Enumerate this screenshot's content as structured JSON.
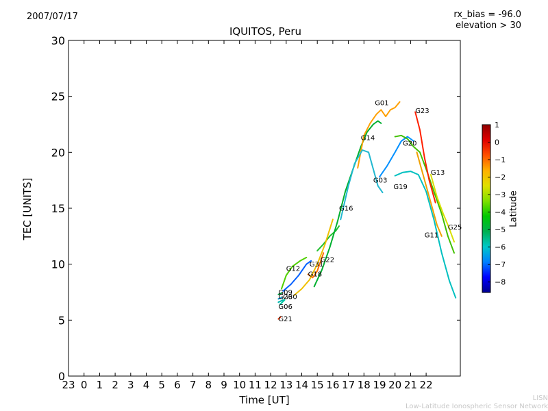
{
  "header": {
    "date": "2007/07/17",
    "rx_bias": "rx_bias = -96.0",
    "elevation": "elevation > 30"
  },
  "footer": {
    "credit_line1": "LISN",
    "credit_line2": "Low-Latitude Ionospheric Sensor Network"
  },
  "chart_data": {
    "type": "line",
    "title": "IQUITOS, Peru",
    "xlabel": "Time [UT]",
    "ylabel": "TEC [UNITS]",
    "ylim": [
      0,
      30
    ],
    "yticks": [
      0,
      5,
      10,
      15,
      20,
      25,
      30
    ],
    "xtick_labels": [
      "23",
      "0",
      "1",
      "2",
      "3",
      "4",
      "5",
      "6",
      "7",
      "8",
      "9",
      "10",
      "11",
      "12",
      "13",
      "14",
      "15",
      "16",
      "17",
      "18",
      "19",
      "20",
      "21",
      "22"
    ],
    "colorbar": {
      "label": "Latitude",
      "ticks": [
        1,
        0,
        -1,
        -2,
        -3,
        -4,
        -5,
        -6,
        -7,
        -8
      ],
      "range": [
        -8.6,
        1.0
      ],
      "colors": [
        "#00008f",
        "#0000ff",
        "#0080ff",
        "#00c8c8",
        "#00b050",
        "#00c800",
        "#80e000",
        "#e0e000",
        "#ffb000",
        "#ff5000",
        "#e00000",
        "#8f0000"
      ]
    },
    "series": [
      {
        "name": "G21",
        "color": "#ee3300",
        "points": [
          [
            12.5,
            5.1
          ],
          [
            12.65,
            5.3
          ]
        ]
      },
      {
        "name": "G06",
        "color": "#00b8b0",
        "points": [
          [
            12.5,
            6.6
          ],
          [
            12.8,
            6.8
          ]
        ]
      },
      {
        "name": "G09",
        "color": "#00a040",
        "points": [
          [
            12.5,
            7.3
          ],
          [
            12.7,
            7.4
          ]
        ]
      },
      {
        "name": "G26",
        "color": "#0090d0",
        "points": [
          [
            12.5,
            6.9
          ],
          [
            12.7,
            7.0
          ]
        ]
      },
      {
        "name": "G30",
        "color": "#00c8a0",
        "points": [
          [
            12.6,
            6.4
          ],
          [
            12.9,
            6.8
          ]
        ]
      },
      {
        "name": "G12",
        "color": "#50d000",
        "points": [
          [
            12.7,
            7.8
          ],
          [
            13.0,
            9.0
          ],
          [
            13.4,
            9.8
          ],
          [
            13.9,
            10.3
          ],
          [
            14.3,
            10.6
          ]
        ]
      },
      {
        "name": "G31",
        "color": "#0060ff",
        "points": [
          [
            12.8,
            7.6
          ],
          [
            13.3,
            8.2
          ],
          [
            13.8,
            9.0
          ],
          [
            14.3,
            10.0
          ],
          [
            14.6,
            10.3
          ]
        ]
      },
      {
        "name": "G18",
        "color": "#ff7000",
        "points": [
          [
            14.4,
            9.1
          ],
          [
            14.7,
            8.8
          ],
          [
            15.0,
            9.4
          ],
          [
            15.4,
            11.0
          ]
        ]
      },
      {
        "name": "G22",
        "color": "#20c030",
        "points": [
          [
            15.0,
            11.2
          ],
          [
            15.4,
            11.8
          ],
          [
            15.8,
            12.5
          ],
          [
            16.2,
            13.0
          ],
          [
            16.4,
            13.4
          ]
        ]
      },
      {
        "name": "G16",
        "color": "#f0c000",
        "points": [
          [
            13.5,
            7.2
          ],
          [
            14.0,
            7.8
          ],
          [
            14.5,
            8.6
          ],
          [
            15.0,
            10.0
          ],
          [
            15.5,
            11.8
          ],
          [
            16.0,
            14.0
          ]
        ]
      },
      {
        "name": "G14",
        "color": "#00b030",
        "points": [
          [
            14.8,
            8.0
          ],
          [
            15.3,
            9.5
          ],
          [
            15.8,
            11.5
          ],
          [
            16.3,
            13.8
          ],
          [
            16.8,
            16.5
          ],
          [
            17.3,
            18.5
          ],
          [
            17.8,
            20.5
          ],
          [
            18.2,
            21.8
          ],
          [
            18.6,
            22.5
          ],
          [
            18.9,
            22.8
          ],
          [
            19.1,
            22.6
          ]
        ]
      },
      {
        "name": "G01",
        "color": "#ffa000",
        "points": [
          [
            17.6,
            18.6
          ],
          [
            18.0,
            21.5
          ],
          [
            18.4,
            22.6
          ],
          [
            18.8,
            23.4
          ],
          [
            19.1,
            23.8
          ],
          [
            19.4,
            23.2
          ],
          [
            19.7,
            23.8
          ],
          [
            20.0,
            24.0
          ],
          [
            20.3,
            24.5
          ]
        ]
      },
      {
        "name": "G03",
        "color": "#20b8d0",
        "points": [
          [
            16.5,
            14.0
          ],
          [
            17.0,
            17.0
          ],
          [
            17.4,
            19.0
          ],
          [
            17.9,
            20.2
          ],
          [
            18.3,
            20.0
          ],
          [
            18.6,
            18.5
          ],
          [
            18.9,
            17.0
          ],
          [
            19.2,
            16.4
          ]
        ]
      },
      {
        "name": "G19",
        "color": "#0090ff",
        "points": [
          [
            19.0,
            17.8
          ],
          [
            19.5,
            18.8
          ],
          [
            20.0,
            20.0
          ],
          [
            20.4,
            21.0
          ],
          [
            20.8,
            21.4
          ],
          [
            21.2,
            21.0
          ]
        ]
      },
      {
        "name": "G20",
        "color": "#40c000",
        "points": [
          [
            20.0,
            21.4
          ],
          [
            20.4,
            21.5
          ],
          [
            20.8,
            21.2
          ],
          [
            21.2,
            20.5
          ],
          [
            21.6,
            20.0
          ],
          [
            22.0,
            18.5
          ],
          [
            22.5,
            16.5
          ],
          [
            23.0,
            14.5
          ],
          [
            23.4,
            12.5
          ],
          [
            23.8,
            11.0
          ]
        ]
      },
      {
        "name": "G13",
        "color": "#f0a000",
        "points": [
          [
            21.4,
            20.0
          ],
          [
            21.8,
            18.0
          ],
          [
            22.1,
            16.5
          ],
          [
            22.4,
            15.0
          ],
          [
            22.7,
            13.5
          ],
          [
            23.0,
            12.5
          ]
        ]
      },
      {
        "name": "G23",
        "color": "#ff2000",
        "points": [
          [
            21.3,
            23.6
          ],
          [
            21.6,
            22.0
          ],
          [
            21.9,
            19.5
          ],
          [
            22.2,
            17.5
          ],
          [
            22.6,
            15.5
          ]
        ]
      },
      {
        "name": "G11",
        "color": "#00c0c0",
        "points": [
          [
            20.0,
            17.9
          ],
          [
            20.5,
            18.2
          ],
          [
            21.0,
            18.3
          ],
          [
            21.5,
            18.0
          ],
          [
            22.0,
            16.5
          ],
          [
            22.5,
            14.0
          ],
          [
            23.0,
            11.0
          ],
          [
            23.5,
            8.5
          ],
          [
            23.9,
            7.0
          ]
        ]
      },
      {
        "name": "G25",
        "color": "#d8e000",
        "points": [
          [
            22.3,
            18.0
          ],
          [
            22.7,
            16.0
          ],
          [
            23.1,
            14.5
          ],
          [
            23.4,
            13.5
          ],
          [
            23.8,
            12.0
          ]
        ]
      }
    ],
    "point_labels": [
      {
        "text": "G01",
        "x": 18.7,
        "y": 24.2
      },
      {
        "text": "G23",
        "x": 21.3,
        "y": 23.5
      },
      {
        "text": "G14",
        "x": 17.8,
        "y": 21.1
      },
      {
        "text": "G20",
        "x": 20.5,
        "y": 20.6
      },
      {
        "text": "G13",
        "x": 22.3,
        "y": 18.0
      },
      {
        "text": "G03",
        "x": 18.6,
        "y": 17.3
      },
      {
        "text": "G19",
        "x": 19.9,
        "y": 16.7
      },
      {
        "text": "G16",
        "x": 16.4,
        "y": 14.8
      },
      {
        "text": "G25",
        "x": 23.4,
        "y": 13.1
      },
      {
        "text": "G11",
        "x": 21.9,
        "y": 12.4
      },
      {
        "text": "G22",
        "x": 15.2,
        "y": 10.2
      },
      {
        "text": "G31",
        "x": 14.5,
        "y": 9.8
      },
      {
        "text": "G12",
        "x": 13.0,
        "y": 9.4
      },
      {
        "text": "G18",
        "x": 14.4,
        "y": 8.9
      },
      {
        "text": "G09",
        "x": 12.5,
        "y": 7.3
      },
      {
        "text": "G26",
        "x": 12.5,
        "y": 6.9
      },
      {
        "text": "G30",
        "x": 12.8,
        "y": 6.9
      },
      {
        "text": "G06",
        "x": 12.5,
        "y": 6.0
      },
      {
        "text": "G21",
        "x": 12.5,
        "y": 4.9
      }
    ]
  }
}
